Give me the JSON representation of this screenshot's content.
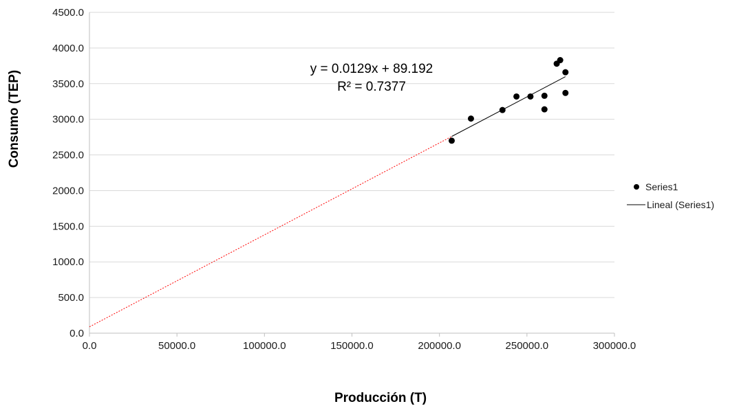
{
  "chart_data": {
    "type": "scatter",
    "title": "",
    "xlabel": "Producción (T)",
    "ylabel": "Consumo (TEP)",
    "xlim": [
      0,
      300000
    ],
    "ylim": [
      0,
      4500
    ],
    "x_ticks": [
      "0.0",
      "50000.0",
      "100000.0",
      "150000.0",
      "200000.0",
      "250000.0",
      "300000.0"
    ],
    "x_tick_values": [
      0,
      50000,
      100000,
      150000,
      200000,
      250000,
      300000
    ],
    "y_ticks": [
      "0.0",
      "500.0",
      "1000.0",
      "1500.0",
      "2000.0",
      "2500.0",
      "3000.0",
      "3500.0",
      "4000.0",
      "4500.0"
    ],
    "y_tick_values": [
      0,
      500,
      1000,
      1500,
      2000,
      2500,
      3000,
      3500,
      4000,
      4500
    ],
    "grid": "horizontal",
    "legend_position": "right",
    "series": [
      {
        "name": "Series1",
        "marker": "circle",
        "color": "#000000",
        "x": [
          207000,
          218000,
          236000,
          244000,
          252000,
          260000,
          260000,
          267000,
          269000,
          272000,
          272000
        ],
        "y": [
          2700,
          3010,
          3130,
          3320,
          3320,
          3140,
          3330,
          3780,
          3830,
          3370,
          3660
        ]
      }
    ],
    "trendline": {
      "name": "Lineal (Series1)",
      "type": "linear",
      "slope": 0.0129,
      "intercept": 89.192,
      "r2": 0.7377,
      "fit_range": [
        207000,
        272000
      ],
      "color": "#000000",
      "extension_color": "#ff0000"
    },
    "annotations": {
      "equation": "y = 0.0129x + 89.192",
      "r_squared": "R² = 0.7377"
    }
  }
}
